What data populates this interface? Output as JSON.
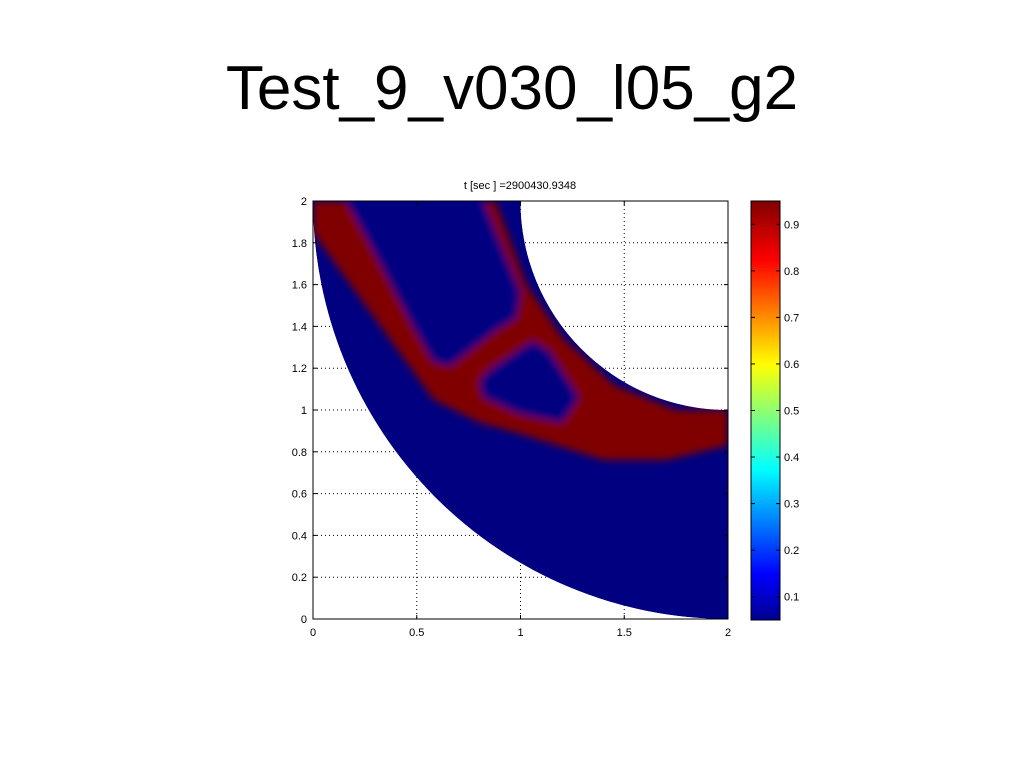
{
  "slide": {
    "title": "Test_9_v030_l05_g2"
  },
  "chart_data": {
    "type": "heatmap",
    "title": "t [sec ] =2900430.9348",
    "xlabel": "",
    "ylabel": "",
    "xlim": [
      0,
      2
    ],
    "ylim": [
      0,
      2
    ],
    "grid": true,
    "x_ticks": [
      0,
      0.5,
      1,
      1.5,
      2
    ],
    "x_tick_labels": [
      "0",
      "0.5",
      "1",
      "1.5",
      "2"
    ],
    "y_ticks": [
      0,
      0.2,
      0.4,
      0.6,
      0.8,
      1,
      1.2,
      1.4,
      1.6,
      1.8,
      2
    ],
    "y_tick_labels": [
      "0",
      "0.2",
      "0.4",
      "0.6",
      "0.8",
      "1",
      "1.2",
      "1.4",
      "1.6",
      "1.8",
      "2"
    ],
    "colormap": "jet",
    "colorbar": {
      "range": [
        0.05,
        0.95
      ],
      "ticks": [
        0.1,
        0.2,
        0.3,
        0.4,
        0.5,
        0.6,
        0.7,
        0.8,
        0.9
      ],
      "tick_labels": [
        "0.1",
        "0.2",
        "0.3",
        "0.4",
        "0.5",
        "0.6",
        "0.7",
        "0.8",
        "0.9"
      ]
    },
    "domain": {
      "shape": "quarter annulus",
      "center": [
        2,
        2
      ],
      "outer_radius": 2,
      "inner_radius": 1
    },
    "regions": {
      "background_value": 0.05,
      "high_value": 0.95,
      "low_value_in_red": 0.05,
      "red_band_outline": [
        [
          0.02,
          1.82
        ],
        [
          0.58,
          1.05
        ],
        [
          0.8,
          0.94
        ],
        [
          1.02,
          0.88
        ],
        [
          1.4,
          0.76
        ],
        [
          1.7,
          0.76
        ],
        [
          2.0,
          0.83
        ],
        [
          2.0,
          1.0
        ],
        [
          1.75,
          1.0
        ],
        [
          1.45,
          1.12
        ],
        [
          1.2,
          1.35
        ],
        [
          1.03,
          1.6
        ],
        [
          0.88,
          2.0
        ],
        [
          0.0,
          2.0
        ],
        [
          0.0,
          1.85
        ]
      ],
      "blue_upper_region": [
        [
          0.16,
          2.0
        ],
        [
          0.82,
          2.0
        ],
        [
          1.0,
          1.56
        ],
        [
          0.98,
          1.44
        ],
        [
          0.88,
          1.38
        ],
        [
          0.66,
          1.21
        ],
        [
          0.58,
          1.23
        ],
        [
          0.48,
          1.4
        ],
        [
          0.28,
          1.78
        ]
      ],
      "blue_inner_island": [
        [
          0.86,
          1.2
        ],
        [
          1.06,
          1.33
        ],
        [
          1.14,
          1.28
        ],
        [
          1.28,
          1.06
        ],
        [
          1.2,
          0.94
        ],
        [
          1.0,
          0.98
        ],
        [
          0.82,
          1.06
        ],
        [
          0.8,
          1.14
        ]
      ]
    }
  }
}
